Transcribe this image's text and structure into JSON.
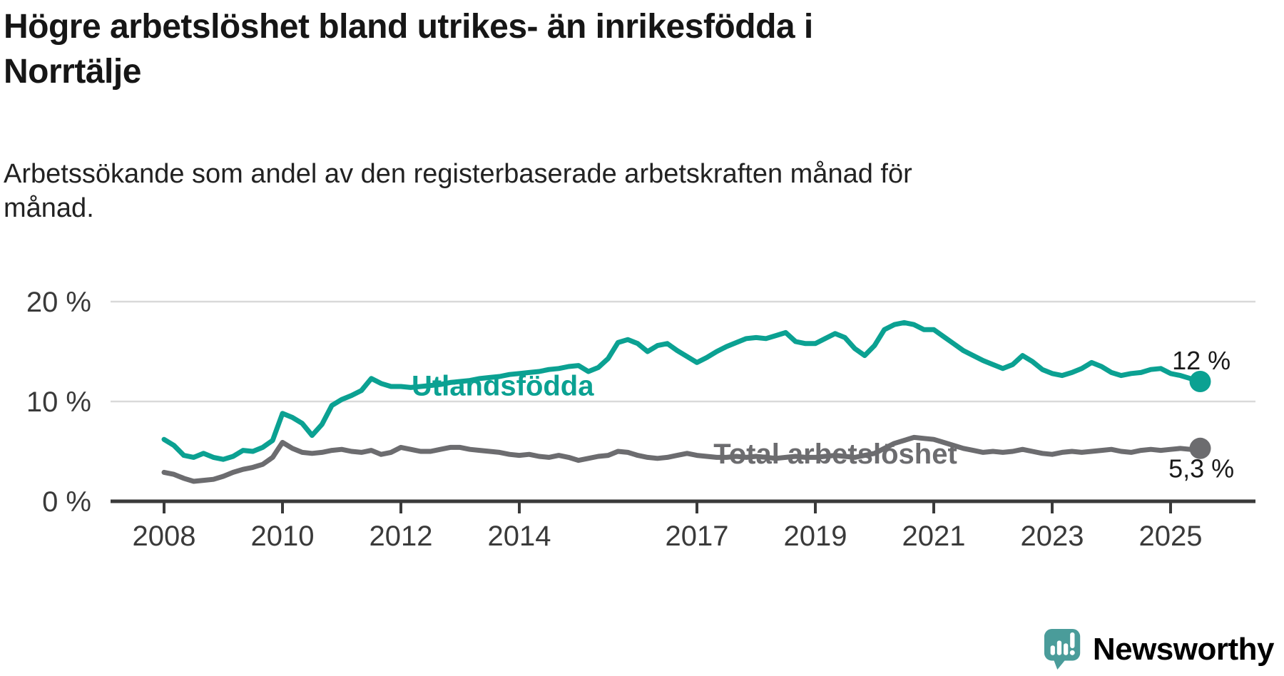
{
  "page": {
    "title_lines": [
      "Högre arbetslöshet bland utrikes- än inrikesfödda i",
      "Norrtälje"
    ],
    "subtitle_lines": [
      "Arbetssökande som andel av den registerbaserade arbetskraften månad för",
      "månad."
    ]
  },
  "branding": {
    "name": "Newsworthy",
    "color": "#4a9c9a",
    "icon": "newsworthy-speech-bubble-chart-icon"
  },
  "chart_data": {
    "type": "line",
    "title": "Högre arbetslöshet bland utrikes- än inrikesfödda i Norrtälje",
    "subtitle": "Arbetssökande som andel av den registerbaserade arbetskraften månad för månad.",
    "grid": "horizontal-only",
    "colors": {
      "axis": "#3a3a3a",
      "gridline": "#d9d9d9",
      "tick_text": "#3a3a3a"
    },
    "x_axis": {
      "tick_years": [
        2008,
        2010,
        2012,
        2014,
        2017,
        2019,
        2021,
        2023,
        2025
      ]
    },
    "y_axis": {
      "ticks": [
        {
          "value": 20,
          "label": "20 %"
        },
        {
          "value": 10,
          "label": "10 %"
        },
        {
          "value": 0,
          "label": "0 %"
        }
      ],
      "min": 0,
      "max": 21
    },
    "x_start": 2008.0,
    "x_step_years": 0.166667,
    "xlim": [
      2007.9,
      2026.2
    ],
    "series": [
      {
        "id": "total",
        "name": "Total arbetslöshet",
        "color": "#6c6c6f",
        "label": {
          "text": "Total arbetslöshet",
          "year": 2017.28,
          "pct": 3.8,
          "anchor": "start"
        },
        "end_label": {
          "text": "5,3 %",
          "year": 2025.52,
          "pct": 2.4,
          "anchor": "middle"
        },
        "end_value": 5.3,
        "values": [
          2.9,
          2.7,
          2.3,
          2.0,
          2.1,
          2.2,
          2.5,
          2.9,
          3.2,
          3.4,
          3.7,
          4.4,
          5.9,
          5.3,
          4.9,
          4.8,
          4.9,
          5.1,
          5.2,
          5.0,
          4.9,
          5.1,
          4.7,
          4.9,
          5.4,
          5.2,
          5.0,
          5.0,
          5.2,
          5.4,
          5.4,
          5.2,
          5.1,
          5.0,
          4.9,
          4.7,
          4.6,
          4.7,
          4.5,
          4.4,
          4.6,
          4.4,
          4.1,
          4.3,
          4.5,
          4.6,
          5.0,
          4.9,
          4.6,
          4.4,
          4.3,
          4.4,
          4.6,
          4.8,
          4.6,
          4.5,
          4.4,
          4.4,
          4.5,
          4.4,
          4.5,
          4.4,
          4.3,
          4.4,
          4.5,
          4.4,
          4.4,
          4.5,
          4.6,
          4.5,
          4.4,
          4.6,
          4.8,
          5.3,
          5.8,
          6.1,
          6.4,
          6.3,
          6.2,
          5.9,
          5.6,
          5.3,
          5.1,
          4.9,
          5.0,
          4.9,
          5.0,
          5.2,
          5.0,
          4.8,
          4.7,
          4.9,
          5.0,
          4.9,
          5.0,
          5.1,
          5.2,
          5.0,
          4.9,
          5.1,
          5.2,
          5.1,
          5.2,
          5.3,
          5.2,
          5.3
        ]
      },
      {
        "id": "utlandsfodda",
        "name": "Utlandsfödda",
        "color": "#0ba192",
        "label": {
          "text": "Utlandsfödda",
          "year": 2012.18,
          "pct": 10.6,
          "anchor": "start"
        },
        "end_label": {
          "text": "12 %",
          "year": 2025.52,
          "pct": 13.2,
          "anchor": "middle"
        },
        "end_value": 12,
        "values": [
          6.2,
          5.6,
          4.6,
          4.4,
          4.8,
          4.4,
          4.2,
          4.5,
          5.1,
          5.0,
          5.4,
          6.1,
          8.8,
          8.4,
          7.8,
          6.6,
          7.7,
          9.6,
          10.2,
          10.6,
          11.1,
          12.3,
          11.8,
          11.5,
          11.5,
          11.4,
          11.5,
          11.6,
          11.7,
          11.9,
          12.0,
          12.1,
          12.3,
          12.4,
          12.5,
          12.7,
          12.8,
          12.9,
          13.0,
          13.2,
          13.3,
          13.5,
          13.6,
          13.0,
          13.4,
          14.3,
          15.9,
          16.2,
          15.8,
          15.0,
          15.6,
          15.8,
          15.1,
          14.5,
          13.9,
          14.4,
          15.0,
          15.5,
          15.9,
          16.3,
          16.4,
          16.3,
          16.6,
          16.9,
          16.0,
          15.8,
          15.8,
          16.3,
          16.8,
          16.4,
          15.3,
          14.6,
          15.6,
          17.2,
          17.7,
          17.9,
          17.7,
          17.2,
          17.2,
          16.5,
          15.8,
          15.1,
          14.6,
          14.1,
          13.7,
          13.3,
          13.7,
          14.6,
          14.0,
          13.2,
          12.8,
          12.6,
          12.9,
          13.3,
          13.9,
          13.5,
          12.9,
          12.6,
          12.8,
          12.9,
          13.2,
          13.3,
          12.8,
          12.6,
          12.3,
          12.0
        ]
      }
    ]
  }
}
